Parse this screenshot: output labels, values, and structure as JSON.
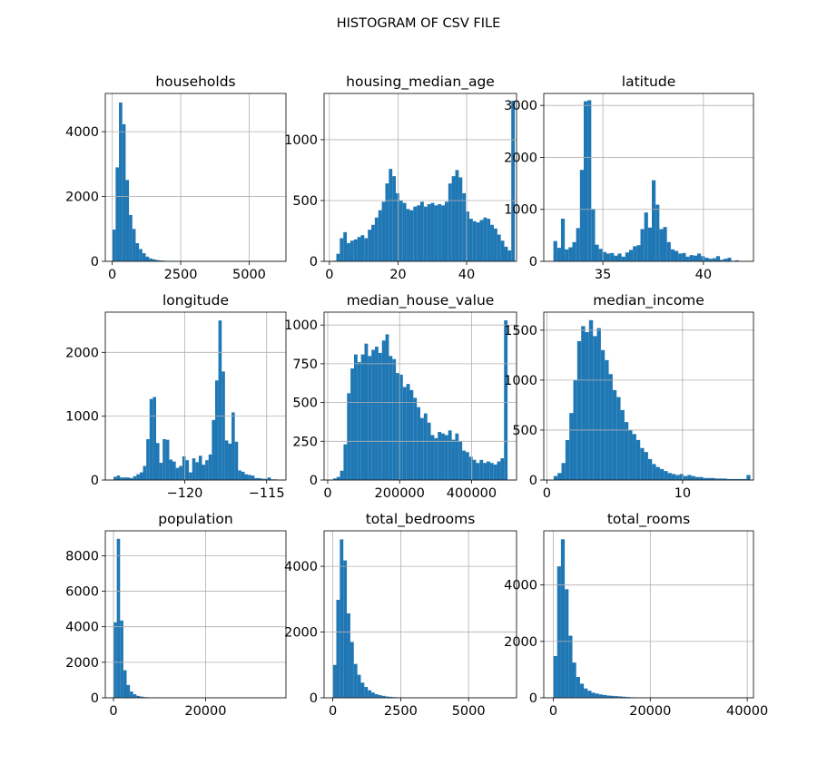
{
  "figure_title": "HISTOGRAM OF CSV FILE",
  "chart_data": [
    {
      "type": "bar",
      "title": "households",
      "xlabel": "",
      "ylabel": "",
      "xlim": [
        -254,
        6344
      ],
      "ylim": [
        0,
        5180
      ],
      "xticks": [
        0,
        2500,
        5000
      ],
      "yticks": [
        0,
        2000,
        4000
      ],
      "bins": {
        "start": 1,
        "width": 122.0,
        "counts": [
          980,
          2900,
          4900,
          4230,
          2510,
          1430,
          1000,
          560,
          380,
          250,
          145,
          90,
          62,
          40,
          28,
          20,
          15,
          11,
          8,
          6,
          5,
          4,
          3,
          2,
          2,
          2,
          1,
          1,
          1,
          1,
          1,
          1,
          1,
          1,
          0,
          0,
          0,
          0,
          0,
          0,
          0,
          0,
          0,
          0,
          0,
          0,
          0,
          0,
          0,
          1
        ]
      }
    },
    {
      "type": "bar",
      "title": "housing_median_age",
      "xlabel": "",
      "ylabel": "",
      "xlim": [
        -1.55,
        54.55
      ],
      "ylim": [
        0,
        1380
      ],
      "xticks": [
        0,
        20,
        40
      ],
      "yticks": [
        0,
        500,
        1000
      ],
      "bins": {
        "start": 1,
        "width": 1.02,
        "counts": [
          5,
          62,
          190,
          240,
          150,
          170,
          180,
          200,
          215,
          190,
          260,
          300,
          360,
          420,
          490,
          640,
          760,
          700,
          560,
          500,
          480,
          430,
          420,
          450,
          460,
          490,
          450,
          470,
          480,
          460,
          470,
          460,
          490,
          640,
          700,
          750,
          690,
          560,
          410,
          350,
          330,
          320,
          340,
          360,
          350,
          300,
          270,
          220,
          170,
          120,
          90,
          1320
        ]
      }
    },
    {
      "type": "bar",
      "title": "latitude",
      "xlabel": "",
      "ylabel": "",
      "xlim": [
        32.06,
        42.49
      ],
      "ylim": [
        0,
        3230
      ],
      "xticks": [
        35,
        40
      ],
      "yticks": [
        0,
        1000,
        2000,
        3000
      ],
      "bins": {
        "start": 32.54,
        "width": 0.1882,
        "counts": [
          390,
          260,
          820,
          230,
          270,
          370,
          640,
          1760,
          3080,
          3100,
          1010,
          320,
          240,
          180,
          150,
          160,
          110,
          150,
          90,
          170,
          220,
          290,
          310,
          620,
          940,
          650,
          1560,
          1090,
          620,
          660,
          370,
          230,
          200,
          150,
          160,
          90,
          120,
          110,
          150,
          100,
          70,
          50,
          60,
          100,
          30,
          50,
          70,
          10,
          20,
          5
        ]
      }
    },
    {
      "type": "bar",
      "title": "longitude",
      "xlabel": "",
      "ylabel": "",
      "xlim": [
        -124.85,
        -113.82
      ],
      "ylim": [
        0,
        2630
      ],
      "xticks": [
        -120,
        -115
      ],
      "yticks": [
        0,
        1000,
        2000
      ],
      "bins": {
        "start": -124.35,
        "width": 0.2002,
        "counts": [
          50,
          70,
          40,
          40,
          40,
          30,
          60,
          90,
          120,
          220,
          640,
          1270,
          1300,
          580,
          270,
          640,
          630,
          320,
          290,
          190,
          220,
          370,
          310,
          120,
          340,
          280,
          380,
          240,
          310,
          400,
          940,
          1560,
          2500,
          1700,
          620,
          570,
          1060,
          600,
          150,
          130,
          90,
          80,
          70,
          30,
          30,
          20,
          20,
          40,
          10,
          10
        ]
      }
    },
    {
      "type": "bar",
      "title": "median_house_value",
      "xlabel": "",
      "ylabel": "",
      "xlim": [
        -10000,
        525000
      ],
      "ylim": [
        0,
        1083
      ],
      "xticks": [
        0,
        200000,
        400000
      ],
      "yticks": [
        0,
        250,
        500,
        750,
        1000
      ],
      "bins": {
        "start": 14999,
        "width": 9700.0,
        "counts": [
          10,
          20,
          60,
          230,
          560,
          720,
          810,
          760,
          810,
          880,
          800,
          840,
          860,
          820,
          900,
          940,
          800,
          780,
          690,
          680,
          600,
          620,
          580,
          530,
          470,
          400,
          430,
          370,
          290,
          270,
          310,
          300,
          290,
          320,
          260,
          300,
          250,
          190,
          180,
          150,
          130,
          110,
          130,
          110,
          120,
          110,
          100,
          120,
          140,
          1030
        ]
      }
    },
    {
      "type": "bar",
      "title": "median_income",
      "xlabel": "",
      "ylabel": "",
      "xlim": [
        -0.225,
        15.225
      ],
      "ylim": [
        0,
        1680
      ],
      "xticks": [
        0,
        10
      ],
      "yticks": [
        0,
        500,
        1000,
        1500
      ],
      "bins": {
        "start": 0.5,
        "width": 0.29,
        "counts": [
          40,
          70,
          170,
          400,
          670,
          1000,
          1390,
          1540,
          1480,
          1600,
          1440,
          1520,
          1300,
          1200,
          1060,
          900,
          830,
          700,
          580,
          500,
          460,
          400,
          320,
          280,
          210,
          160,
          130,
          110,
          90,
          70,
          60,
          50,
          60,
          40,
          50,
          40,
          30,
          30,
          20,
          20,
          20,
          15,
          15,
          15,
          10,
          10,
          10,
          10,
          10,
          50
        ]
      }
    },
    {
      "type": "bar",
      "title": "population",
      "xlabel": "",
      "ylabel": "",
      "xlim": [
        -1778,
        37467
      ],
      "ylim": [
        0,
        9400
      ],
      "xticks": [
        0,
        20000
      ],
      "yticks": [
        0,
        2000,
        4000,
        6000,
        8000
      ],
      "bins": {
        "start": 3,
        "width": 713.6,
        "counts": [
          4250,
          8950,
          4350,
          1550,
          720,
          350,
          200,
          110,
          70,
          40,
          30,
          20,
          15,
          10,
          8,
          5,
          4,
          3,
          2,
          2,
          1,
          1,
          1,
          1,
          1,
          1,
          1,
          1,
          0,
          0,
          0,
          0,
          0,
          0,
          0,
          0,
          0,
          0,
          0,
          0,
          0,
          0,
          0,
          0,
          0,
          0,
          0,
          0,
          0,
          1
        ]
      }
    },
    {
      "type": "bar",
      "title": "total_bedrooms",
      "xlabel": "",
      "ylabel": "",
      "xlim": [
        -321,
        6767
      ],
      "ylim": [
        0,
        5080
      ],
      "xticks": [
        0,
        2500,
        5000
      ],
      "yticks": [
        0,
        2000,
        4000
      ],
      "bins": {
        "start": 1,
        "width": 128.9,
        "counts": [
          1000,
          2980,
          4820,
          4180,
          2570,
          1700,
          1030,
          700,
          460,
          330,
          230,
          160,
          110,
          80,
          60,
          40,
          30,
          20,
          15,
          10,
          8,
          6,
          5,
          4,
          3,
          3,
          2,
          2,
          1,
          1,
          1,
          1,
          1,
          1,
          1,
          0,
          0,
          0,
          0,
          0,
          0,
          0,
          0,
          0,
          0,
          0,
          0,
          0,
          0,
          1
        ]
      }
    },
    {
      "type": "bar",
      "title": "total_rooms",
      "xlabel": "",
      "ylabel": "",
      "xlim": [
        -1966,
        41288
      ],
      "ylim": [
        0,
        5920
      ],
      "xticks": [
        0,
        20000,
        40000
      ],
      "yticks": [
        0,
        2000,
        4000
      ],
      "bins": {
        "start": 2,
        "width": 786.4,
        "counts": [
          1480,
          4660,
          5620,
          3850,
          2200,
          1250,
          740,
          500,
          330,
          250,
          180,
          150,
          120,
          100,
          80,
          70,
          60,
          50,
          40,
          30,
          20,
          15,
          10,
          8,
          6,
          5,
          4,
          3,
          2,
          2,
          1,
          1,
          1,
          1,
          0,
          0,
          0,
          0,
          0,
          0,
          0,
          0,
          0,
          0,
          0,
          0,
          0,
          0,
          0,
          1
        ]
      }
    }
  ],
  "colors": {
    "bar": "#1f77b4",
    "grid": "#b0b0b0",
    "axes": "#000000"
  }
}
